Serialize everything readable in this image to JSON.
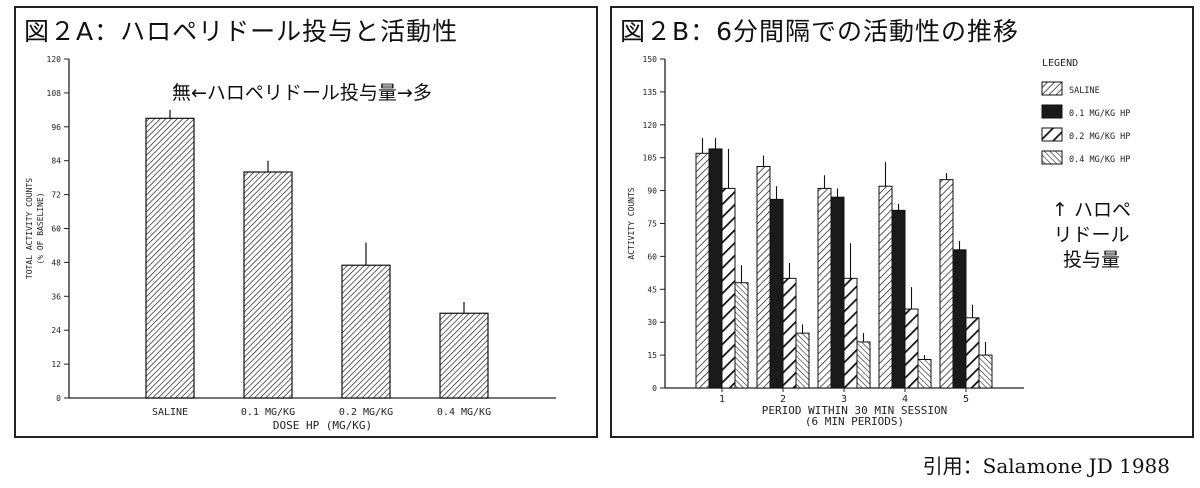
{
  "chart_data": [
    {
      "type": "bar",
      "title": "図２A：ハロペリドール投与と活動性",
      "annotation": "無←ハロペリドール投与量→多",
      "ylabel_lines": [
        "TOTAL ACTIVITY COUNTS",
        "(% OF BASELINE)"
      ],
      "xlabel": "DOSE HP (MG/KG)",
      "categories": [
        "SALINE",
        "0.1 MG/KG",
        "0.2 MG/KG",
        "0.4 MG/KG"
      ],
      "values": [
        99,
        80,
        47,
        30
      ],
      "errors": [
        3,
        4,
        8,
        4
      ],
      "ylim": [
        0,
        120
      ],
      "yticks": [
        "0",
        "12",
        "24",
        "36",
        "48",
        "60",
        "72",
        "84",
        "96",
        "108",
        "120"
      ],
      "grid": false
    },
    {
      "type": "bar",
      "title": "図２B：6分間隔での活動性の推移",
      "annotation_lines": [
        "↑ ハロペ",
        "リドール",
        "投与量"
      ],
      "ylabel": "ACTIVITY COUNTS",
      "xlabel_lines": [
        "PERIOD WITHIN 30 MIN SESSION",
        "(6 MIN PERIODS)"
      ],
      "categories": [
        "1",
        "2",
        "3",
        "4",
        "5"
      ],
      "legend_title": "LEGEND",
      "legend_position": "right",
      "series": [
        {
          "name": "SALINE",
          "values": [
            107,
            101,
            91,
            92,
            95
          ],
          "errors": [
            7,
            5,
            6,
            11,
            3
          ]
        },
        {
          "name": "0.1 MG/KG HP",
          "values": [
            109,
            86,
            87,
            81,
            63
          ],
          "errors": [
            5,
            6,
            4,
            3,
            4
          ]
        },
        {
          "name": "0.2 MG/KG HP",
          "values": [
            91,
            50,
            50,
            36,
            32
          ],
          "errors": [
            18,
            7,
            16,
            10,
            6
          ]
        },
        {
          "name": "0.4 MG/KG HP",
          "values": [
            48,
            25,
            21,
            13,
            15
          ],
          "errors": [
            8,
            4,
            4,
            2,
            6
          ]
        }
      ],
      "ylim": [
        0,
        150
      ],
      "yticks": [
        "0",
        "15",
        "30",
        "45",
        "60",
        "75",
        "90",
        "105",
        "120",
        "135",
        "150"
      ],
      "grid": false
    }
  ],
  "citation": "引用：Salamone JD 1988"
}
